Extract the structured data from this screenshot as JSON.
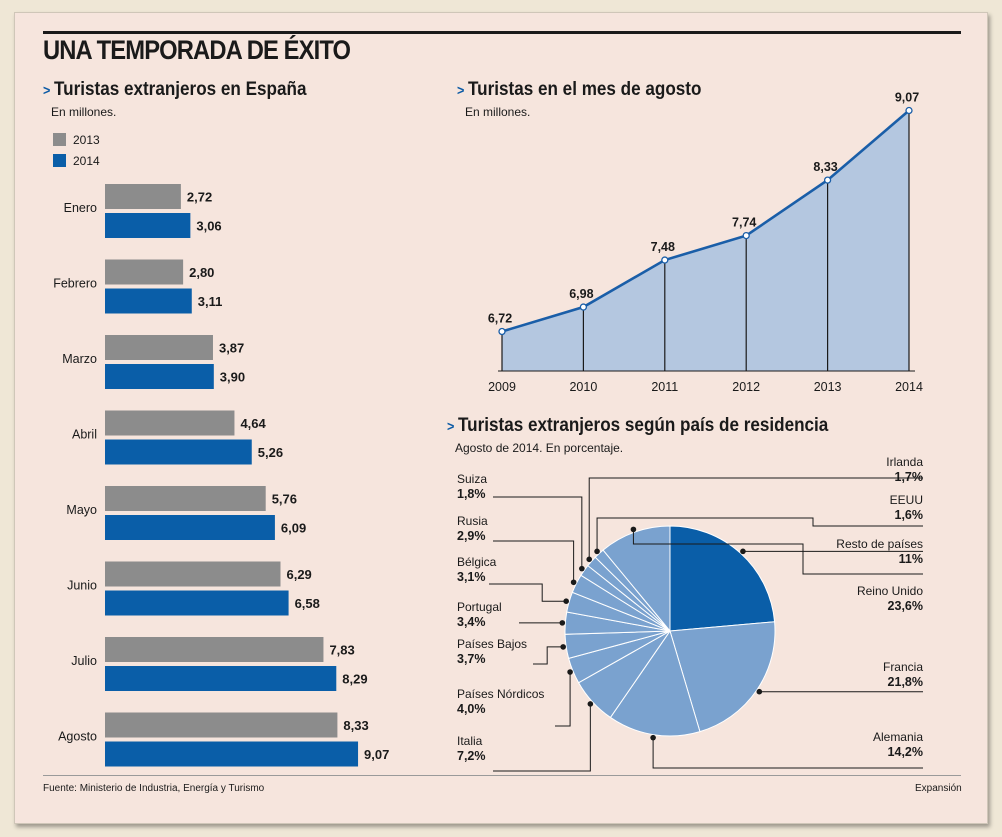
{
  "header": {
    "title": "UNA TEMPORADA DE ÉXITO"
  },
  "footer": {
    "source_label": "Fuente:",
    "source": "Ministerio de Industria, Energía y Turismo",
    "brand": "Expansión"
  },
  "colors": {
    "gray": "#8c8c8c",
    "blue": "#0a5ea8",
    "area_fill": "#b4c7e0",
    "line": "#1a5ea8",
    "pie_light": "#7aa2cf",
    "pie_dark": "#0a5ea8"
  },
  "chart_data": [
    {
      "type": "bar",
      "title": "Turistas extranjeros en España",
      "subtitle": "En millones.",
      "categories": [
        "Enero",
        "Febrero",
        "Marzo",
        "Abril",
        "Mayo",
        "Junio",
        "Julio",
        "Agosto"
      ],
      "series": [
        {
          "name": "2013",
          "values": [
            2.72,
            2.8,
            3.87,
            4.64,
            5.76,
            6.29,
            7.83,
            8.33
          ],
          "labels": [
            "2,72",
            "2,80",
            "3,87",
            "4,64",
            "5,76",
            "6,29",
            "7,83",
            "8,33"
          ]
        },
        {
          "name": "2014",
          "values": [
            3.06,
            3.11,
            3.9,
            5.26,
            6.09,
            6.58,
            8.29,
            9.07
          ],
          "labels": [
            "3,06",
            "3,11",
            "3,90",
            "5,26",
            "6,09",
            "6,58",
            "8,29",
            "9,07"
          ]
        }
      ],
      "orientation": "horizontal",
      "xlim": [
        0,
        10
      ]
    },
    {
      "type": "area",
      "title": "Turistas en el mes de agosto",
      "subtitle": "En millones.",
      "x": [
        "2009",
        "2010",
        "2011",
        "2012",
        "2013",
        "2014"
      ],
      "values": [
        6.72,
        6.98,
        7.48,
        7.74,
        8.33,
        9.07
      ],
      "labels": [
        "6,72",
        "6,98",
        "7,48",
        "7,74",
        "8,33",
        "9,07"
      ],
      "ylim": [
        6.3,
        9.15
      ]
    },
    {
      "type": "pie",
      "title": "Turistas extranjeros según país de residencia",
      "subtitle": "Agosto de 2014. En porcentaje.",
      "slices": [
        {
          "name": "Reino Unido",
          "value": 23.6,
          "label": "23,6%"
        },
        {
          "name": "Francia",
          "value": 21.8,
          "label": "21,8%"
        },
        {
          "name": "Alemania",
          "value": 14.2,
          "label": "14,2%"
        },
        {
          "name": "Italia",
          "value": 7.2,
          "label": "7,2%"
        },
        {
          "name": "Países Nórdicos",
          "value": 4.0,
          "label": "4,0%"
        },
        {
          "name": "Países Bajos",
          "value": 3.7,
          "label": "3,7%"
        },
        {
          "name": "Portugal",
          "value": 3.4,
          "label": "3,4%"
        },
        {
          "name": "Bélgica",
          "value": 3.1,
          "label": "3,1%"
        },
        {
          "name": "Rusia",
          "value": 2.9,
          "label": "2,9%"
        },
        {
          "name": "Suiza",
          "value": 1.8,
          "label": "1,8%"
        },
        {
          "name": "Irlanda",
          "value": 1.7,
          "label": "1,7%"
        },
        {
          "name": "EEUU",
          "value": 1.6,
          "label": "1,6%"
        },
        {
          "name": "Resto de países",
          "value": 11,
          "label": "11%"
        }
      ]
    }
  ]
}
